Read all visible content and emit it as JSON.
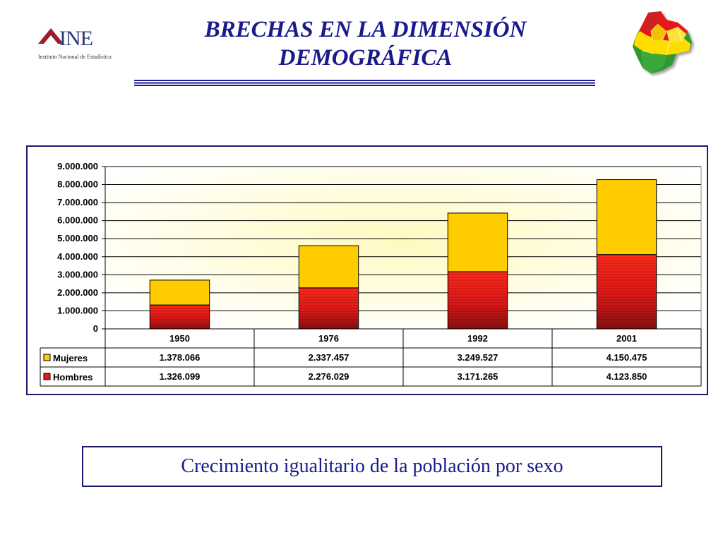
{
  "header": {
    "title_line1": "BRECHAS EN LA DIMENSIÓN",
    "title_line2": "DEMOGRÁFICA",
    "logo_text": "INE",
    "logo_subtitle": "Instituto Nacional de Estadística"
  },
  "caption": "Crecimiento igualitario de la población por sexo",
  "colors": {
    "title": "#1a1a8c",
    "mujeres": "#ffcc00",
    "hombres": "#e8191a",
    "frame": "#1a1a6e"
  },
  "chart_data": {
    "type": "bar",
    "stacked": true,
    "categories": [
      "1950",
      "1976",
      "1992",
      "2001"
    ],
    "series": [
      {
        "name": "Hombres",
        "values": [
          1326099,
          2276029,
          3171265,
          4123850
        ],
        "labels": [
          "1.326.099",
          "2.276.029",
          "3.171.265",
          "4.123.850"
        ]
      },
      {
        "name": "Mujeres",
        "values": [
          1378066,
          2337457,
          3249527,
          4150475
        ],
        "labels": [
          "1.378.066",
          "2.337.457",
          "3.249.527",
          "4.150.475"
        ]
      }
    ],
    "table_rows": [
      "Mujeres",
      "Hombres"
    ],
    "yticks": [
      "0",
      "1.000.000",
      "2.000.000",
      "3.000.000",
      "4.000.000",
      "5.000.000",
      "6.000.000",
      "7.000.000",
      "8.000.000",
      "9.000.000"
    ],
    "ylim": [
      0,
      9000000
    ],
    "grid": true,
    "legend": "data-table"
  }
}
